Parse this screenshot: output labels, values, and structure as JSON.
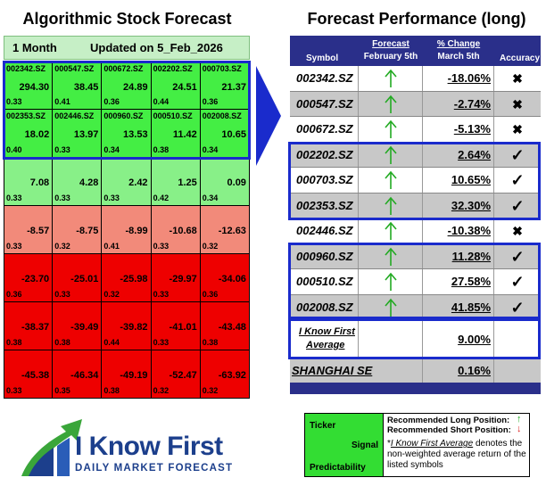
{
  "left": {
    "title": "Algorithmic Stock Forecast",
    "period": "1 Month",
    "updated": "Updated on 5_Feb_2026",
    "rows": [
      [
        {
          "ticker": "002342.SZ",
          "signal": "294.30",
          "pred": "0.33",
          "color": "lime"
        },
        {
          "ticker": "000547.SZ",
          "signal": "38.45",
          "pred": "0.41",
          "color": "lime"
        },
        {
          "ticker": "000672.SZ",
          "signal": "24.89",
          "pred": "0.36",
          "color": "lime"
        },
        {
          "ticker": "002202.SZ",
          "signal": "24.51",
          "pred": "0.44",
          "color": "lime"
        },
        {
          "ticker": "000703.SZ",
          "signal": "21.37",
          "pred": "0.36",
          "color": "lime"
        }
      ],
      [
        {
          "ticker": "002353.SZ",
          "signal": "18.02",
          "pred": "0.40",
          "color": "lime"
        },
        {
          "ticker": "002446.SZ",
          "signal": "13.97",
          "pred": "0.33",
          "color": "lime"
        },
        {
          "ticker": "000960.SZ",
          "signal": "13.53",
          "pred": "0.34",
          "color": "lime"
        },
        {
          "ticker": "000510.SZ",
          "signal": "11.42",
          "pred": "0.38",
          "color": "lime"
        },
        {
          "ticker": "002008.SZ",
          "signal": "10.65",
          "pred": "0.34",
          "color": "lime"
        }
      ],
      [
        {
          "ticker": "",
          "signal": "7.08",
          "pred": "0.33",
          "color": "light"
        },
        {
          "ticker": "",
          "signal": "4.28",
          "pred": "0.33",
          "color": "light"
        },
        {
          "ticker": "",
          "signal": "2.42",
          "pred": "0.33",
          "color": "light"
        },
        {
          "ticker": "",
          "signal": "1.25",
          "pred": "0.42",
          "color": "light"
        },
        {
          "ticker": "",
          "signal": "0.09",
          "pred": "0.34",
          "color": "light"
        }
      ],
      [
        {
          "ticker": "",
          "signal": "-8.57",
          "pred": "0.33",
          "color": "pink"
        },
        {
          "ticker": "",
          "signal": "-8.75",
          "pred": "0.32",
          "color": "pink"
        },
        {
          "ticker": "",
          "signal": "-8.99",
          "pred": "0.41",
          "color": "pink"
        },
        {
          "ticker": "",
          "signal": "-10.68",
          "pred": "0.33",
          "color": "pink"
        },
        {
          "ticker": "",
          "signal": "-12.63",
          "pred": "0.32",
          "color": "pink"
        }
      ],
      [
        {
          "ticker": "",
          "signal": "-23.70",
          "pred": "0.36",
          "color": "red"
        },
        {
          "ticker": "",
          "signal": "-25.01",
          "pred": "0.33",
          "color": "red"
        },
        {
          "ticker": "",
          "signal": "-25.98",
          "pred": "0.32",
          "color": "red"
        },
        {
          "ticker": "",
          "signal": "-29.97",
          "pred": "0.33",
          "color": "red"
        },
        {
          "ticker": "",
          "signal": "-34.06",
          "pred": "0.36",
          "color": "red"
        }
      ],
      [
        {
          "ticker": "",
          "signal": "-38.37",
          "pred": "0.38",
          "color": "red"
        },
        {
          "ticker": "",
          "signal": "-39.49",
          "pred": "0.38",
          "color": "red"
        },
        {
          "ticker": "",
          "signal": "-39.82",
          "pred": "0.44",
          "color": "red"
        },
        {
          "ticker": "",
          "signal": "-41.01",
          "pred": "0.33",
          "color": "red"
        },
        {
          "ticker": "",
          "signal": "-43.48",
          "pred": "0.38",
          "color": "red"
        }
      ],
      [
        {
          "ticker": "",
          "signal": "-45.38",
          "pred": "0.33",
          "color": "red"
        },
        {
          "ticker": "",
          "signal": "-46.34",
          "pred": "0.35",
          "color": "red"
        },
        {
          "ticker": "",
          "signal": "-49.19",
          "pred": "0.38",
          "color": "red"
        },
        {
          "ticker": "",
          "signal": "-52.47",
          "pred": "0.32",
          "color": "red"
        },
        {
          "ticker": "",
          "signal": "-63.92",
          "pred": "0.32",
          "color": "red"
        }
      ]
    ]
  },
  "right": {
    "title": "Forecast Performance (long)",
    "headers": {
      "symbol": "Symbol",
      "forecast": "Forecast",
      "forecast_date": "February 5th",
      "change": "% Change",
      "change_date": "March 5th",
      "accuracy": "Accuracy"
    },
    "rows": [
      {
        "symbol": "002342.SZ",
        "change": "-18.06%",
        "accuracy": "✖",
        "shade": "wht"
      },
      {
        "symbol": "000547.SZ",
        "change": "-2.74%",
        "accuracy": "✖",
        "shade": "alt"
      },
      {
        "symbol": "000672.SZ",
        "change": "-5.13%",
        "accuracy": "✖",
        "shade": "wht"
      },
      {
        "symbol": "002202.SZ",
        "change": "2.64%",
        "accuracy": "✓",
        "shade": "alt"
      },
      {
        "symbol": "000703.SZ",
        "change": "10.65%",
        "accuracy": "✓",
        "shade": "wht"
      },
      {
        "symbol": "002353.SZ",
        "change": "32.30%",
        "accuracy": "✓",
        "shade": "alt"
      },
      {
        "symbol": "002446.SZ",
        "change": "-10.38%",
        "accuracy": "✖",
        "shade": "wht"
      },
      {
        "symbol": "000960.SZ",
        "change": "11.28%",
        "accuracy": "✓",
        "shade": "alt"
      },
      {
        "symbol": "000510.SZ",
        "change": "27.58%",
        "accuracy": "✓",
        "shade": "wht"
      },
      {
        "symbol": "002008.SZ",
        "change": "41.85%",
        "accuracy": "✓",
        "shade": "alt"
      }
    ],
    "average": {
      "label_line1": "I Know First",
      "label_line2": "Average",
      "change": "9.00%"
    },
    "index": {
      "label": "SHANGHAI SE",
      "change": "0.16%"
    }
  },
  "logo": {
    "name": "I Know First",
    "tagline": "DAILY MARKET FORECAST"
  },
  "legend": {
    "ticker": "Ticker",
    "signal": "Signal",
    "predictability": "Predictability",
    "long": "Recommended Long Position:",
    "short": "Recommended Short Position:",
    "avg_link": "I Know First Average",
    "avg_desc": " denotes the non-weighted average return of the listed symbols"
  },
  "colors": {
    "lime": "#44ee44",
    "light": "#88f088",
    "pink": "#f28a7a",
    "red": "#ee0000",
    "header_navy": "#2a2f8a",
    "highlight_blue": "#1a2bcc",
    "arrow_green": "#22aa22"
  }
}
